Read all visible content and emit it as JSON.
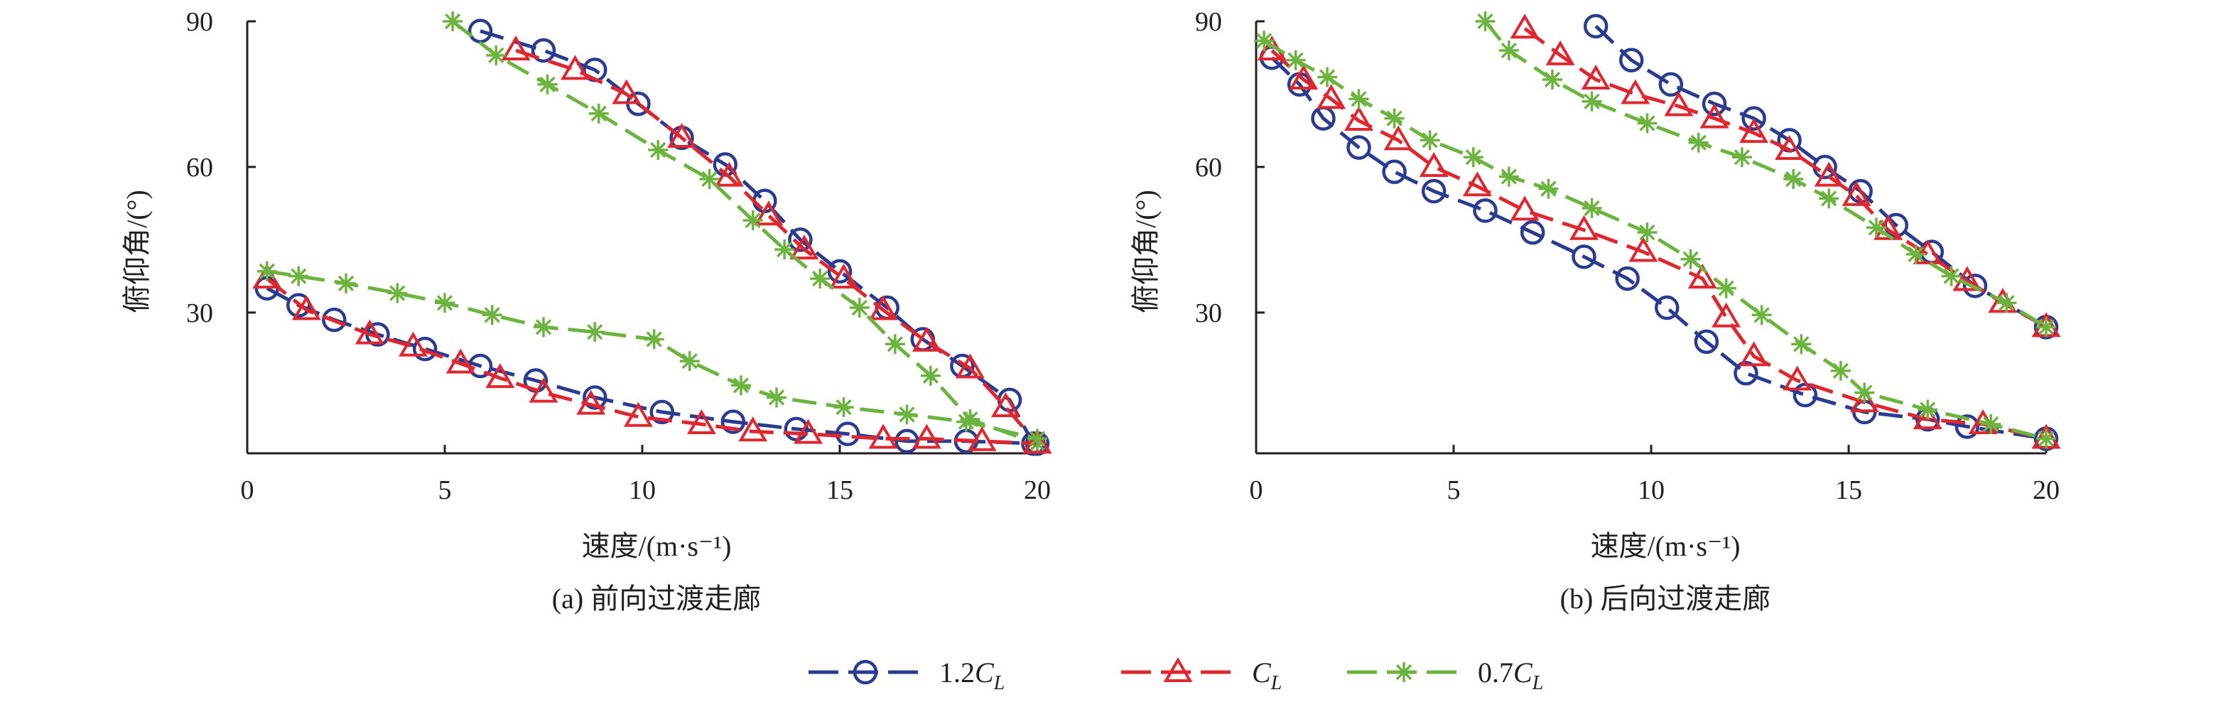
{
  "colors": {
    "blue": "#2a3c91",
    "red": "#e0262f",
    "green": "#6db33f",
    "axis": "#231f20"
  },
  "legend": {
    "items": [
      {
        "series": "1.2CL",
        "prefix": "1.2",
        "main": "C",
        "sub": "L",
        "marker": "circle",
        "color": "#2a3c91"
      },
      {
        "series": "CL",
        "prefix": "",
        "main": "C",
        "sub": "L",
        "marker": "triangle",
        "color": "#e0262f"
      },
      {
        "series": "0.7CL",
        "prefix": "0.7",
        "main": "C",
        "sub": "L",
        "marker": "asterisk",
        "color": "#6db33f"
      }
    ]
  },
  "chart_data": [
    {
      "type": "line",
      "caption": "(a) 前向过渡走廊",
      "xlabel": "速度/(m·s⁻¹)",
      "ylabel": "俯仰角/(°)",
      "xlim": [
        0,
        20
      ],
      "ylim": [
        1,
        90
      ],
      "xticks": [
        "0",
        "5",
        "10",
        "15",
        "20"
      ],
      "yticks": [
        "30",
        "60",
        "90"
      ],
      "series": [
        {
          "name": "1.2CL",
          "color": "#2a3c91",
          "marker": "circle",
          "points": [
            [
              5.9,
              88
            ],
            [
              7.5,
              84
            ],
            [
              8.8,
              80
            ],
            [
              9.9,
              73
            ],
            [
              11,
              66
            ],
            [
              12.1,
              60.5
            ],
            [
              13.1,
              53
            ],
            [
              14,
              45
            ],
            [
              15,
              38.5
            ],
            [
              16.2,
              31
            ],
            [
              17.1,
              24.5
            ],
            [
              18.1,
              19
            ],
            [
              19.3,
              12
            ],
            [
              19.9,
              3
            ]
          ]
        },
        {
          "name": "CL",
          "color": "#e0262f",
          "marker": "triangle",
          "points": [
            [
              6.8,
              84
            ],
            [
              8.3,
              80
            ],
            [
              9.6,
              75
            ],
            [
              11,
              66
            ],
            [
              12.2,
              58
            ],
            [
              13.2,
              50
            ],
            [
              14.1,
              43
            ],
            [
              15.1,
              37
            ],
            [
              16.1,
              30.5
            ],
            [
              17.2,
              24
            ],
            [
              18.3,
              18.5
            ],
            [
              19.2,
              10.5
            ],
            [
              20,
              3
            ]
          ]
        },
        {
          "name": "0.7CL",
          "color": "#6db33f",
          "marker": "asterisk",
          "points": [
            [
              5.2,
              90
            ],
            [
              6.3,
              83
            ],
            [
              7.6,
              77
            ],
            [
              8.9,
              71
            ],
            [
              10.4,
              63.5
            ],
            [
              11.7,
              57.5
            ],
            [
              12.8,
              49
            ],
            [
              13.6,
              43
            ],
            [
              14.5,
              37
            ],
            [
              15.5,
              31
            ],
            [
              16.4,
              23.5
            ],
            [
              17.3,
              17
            ],
            [
              18.3,
              8
            ],
            [
              20,
              3
            ]
          ]
        },
        {
          "name": "1.2CL",
          "color": "#2a3c91",
          "marker": "circle",
          "points": [
            [
              0.5,
              35
            ],
            [
              1.3,
              31.5
            ],
            [
              2.2,
              28.5
            ],
            [
              3.3,
              25.5
            ],
            [
              4.5,
              22.5
            ],
            [
              5.9,
              19
            ],
            [
              7.3,
              16
            ],
            [
              8.8,
              12.5
            ],
            [
              10.5,
              9.5
            ],
            [
              12.3,
              7.5
            ],
            [
              13.9,
              6
            ],
            [
              15.2,
              5
            ],
            [
              16.7,
              3.5
            ],
            [
              18.2,
              3.5
            ],
            [
              20,
              3
            ]
          ]
        },
        {
          "name": "CL",
          "color": "#e0262f",
          "marker": "triangle",
          "points": [
            [
              0.5,
              37
            ],
            [
              1.5,
              30.5
            ],
            [
              3.1,
              25.5
            ],
            [
              4.2,
              23
            ],
            [
              5.4,
              19.5
            ],
            [
              6.4,
              16.5
            ],
            [
              7.5,
              13.5
            ],
            [
              8.7,
              11
            ],
            [
              9.9,
              8.5
            ],
            [
              11.5,
              7
            ],
            [
              12.8,
              5.5
            ],
            [
              14.2,
              5
            ],
            [
              16.1,
              4
            ],
            [
              17.2,
              4
            ],
            [
              18.6,
              3.5
            ],
            [
              20,
              3
            ]
          ]
        },
        {
          "name": "0.7CL",
          "color": "#6db33f",
          "marker": "asterisk",
          "points": [
            [
              0.5,
              38.5
            ],
            [
              1.3,
              37.5
            ],
            [
              2.5,
              36
            ],
            [
              3.8,
              34
            ],
            [
              5,
              32
            ],
            [
              6.2,
              29.5
            ],
            [
              7.5,
              27
            ],
            [
              8.8,
              26
            ],
            [
              10.3,
              24.5
            ],
            [
              11.2,
              20
            ],
            [
              12.5,
              15
            ],
            [
              13.4,
              12.5
            ],
            [
              15.1,
              10.5
            ],
            [
              16.7,
              9
            ],
            [
              18.2,
              7.5
            ],
            [
              20,
              4
            ]
          ]
        }
      ]
    },
    {
      "type": "line",
      "caption": "(b) 后向过渡走廊",
      "xlabel": "速度/(m·s⁻¹)",
      "ylabel": "俯仰角/(°)",
      "xlim": [
        0,
        20
      ],
      "ylim": [
        1,
        90
      ],
      "xticks": [
        "0",
        "5",
        "10",
        "15",
        "20"
      ],
      "yticks": [
        "30",
        "60",
        "90"
      ],
      "series": [
        {
          "name": "1.2CL",
          "color": "#2a3c91",
          "marker": "circle",
          "points": [
            [
              8.6,
              89
            ],
            [
              9.5,
              82
            ],
            [
              10.5,
              77
            ],
            [
              11.6,
              73
            ],
            [
              12.6,
              70
            ],
            [
              13.5,
              65.5
            ],
            [
              14.4,
              60
            ],
            [
              15.3,
              55
            ],
            [
              16.2,
              48
            ],
            [
              17.1,
              42.5
            ],
            [
              18.2,
              35.5
            ],
            [
              20,
              27
            ]
          ]
        },
        {
          "name": "CL",
          "color": "#e0262f",
          "marker": "triangle",
          "points": [
            [
              6.8,
              88.5
            ],
            [
              7.7,
              83
            ],
            [
              8.6,
              78
            ],
            [
              9.6,
              75
            ],
            [
              10.7,
              72.5
            ],
            [
              11.6,
              70
            ],
            [
              12.6,
              67
            ],
            [
              13.5,
              63.5
            ],
            [
              14.5,
              58
            ],
            [
              15.2,
              54
            ],
            [
              16,
              47
            ],
            [
              17,
              42
            ],
            [
              18,
              36.5
            ],
            [
              18.9,
              32
            ],
            [
              20,
              27
            ]
          ]
        },
        {
          "name": "0.7CL",
          "color": "#6db33f",
          "marker": "asterisk",
          "points": [
            [
              5.8,
              90
            ],
            [
              6.4,
              84
            ],
            [
              7.5,
              78
            ],
            [
              8.5,
              73.5
            ],
            [
              9.9,
              69
            ],
            [
              11.2,
              65
            ],
            [
              12.3,
              62
            ],
            [
              13.6,
              57.5
            ],
            [
              14.5,
              53.5
            ],
            [
              15.7,
              47.5
            ],
            [
              16.7,
              42
            ],
            [
              17.6,
              37.5
            ],
            [
              19,
              32
            ],
            [
              20,
              27
            ]
          ]
        },
        {
          "name": "1.2CL",
          "color": "#2a3c91",
          "marker": "circle",
          "points": [
            [
              0.4,
              82.5
            ],
            [
              1.1,
              77
            ],
            [
              1.7,
              70
            ],
            [
              2.6,
              64
            ],
            [
              3.5,
              59
            ],
            [
              4.5,
              55
            ],
            [
              5.8,
              51
            ],
            [
              7,
              46.5
            ],
            [
              8.3,
              41.5
            ],
            [
              9.4,
              37
            ],
            [
              10.4,
              31
            ],
            [
              11.4,
              24
            ],
            [
              12.4,
              17.5
            ],
            [
              13.9,
              13
            ],
            [
              15.4,
              9.5
            ],
            [
              17,
              8
            ],
            [
              18,
              6.5
            ],
            [
              20,
              4
            ]
          ]
        },
        {
          "name": "CL",
          "color": "#e0262f",
          "marker": "triangle",
          "points": [
            [
              0.4,
              84
            ],
            [
              1.2,
              78
            ],
            [
              1.9,
              74
            ],
            [
              2.6,
              69.5
            ],
            [
              3.6,
              65.5
            ],
            [
              4.5,
              60
            ],
            [
              5.6,
              56
            ],
            [
              6.8,
              51
            ],
            [
              8.3,
              47
            ],
            [
              9.8,
              42.5
            ],
            [
              11.3,
              37
            ],
            [
              11.9,
              29
            ],
            [
              12.6,
              21
            ],
            [
              13.7,
              16
            ],
            [
              15.4,
              11.5
            ],
            [
              17,
              8
            ],
            [
              18.4,
              7
            ],
            [
              20,
              4
            ]
          ]
        },
        {
          "name": "0.7CL",
          "color": "#6db33f",
          "marker": "asterisk",
          "points": [
            [
              0.2,
              86
            ],
            [
              1,
              82
            ],
            [
              1.8,
              78.5
            ],
            [
              2.6,
              74
            ],
            [
              3.5,
              70
            ],
            [
              4.4,
              65.5
            ],
            [
              5.5,
              62
            ],
            [
              6.4,
              58
            ],
            [
              7.4,
              55.5
            ],
            [
              8.5,
              51.5
            ],
            [
              9.9,
              46.5
            ],
            [
              11,
              41
            ],
            [
              11.9,
              35
            ],
            [
              12.8,
              29.5
            ],
            [
              13.8,
              23.5
            ],
            [
              14.8,
              18
            ],
            [
              15.4,
              13.5
            ],
            [
              17,
              10
            ],
            [
              18.6,
              7
            ],
            [
              20,
              4
            ]
          ]
        }
      ]
    }
  ]
}
